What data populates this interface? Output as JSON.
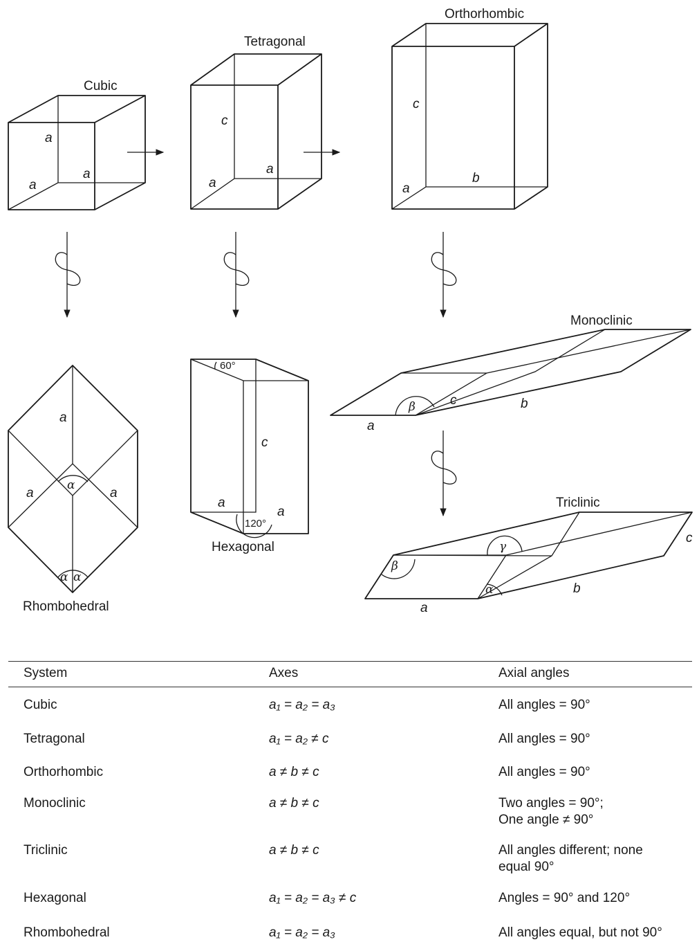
{
  "diagram": {
    "cubic": {
      "title": "Cubic",
      "edge_labels": [
        "a",
        "a",
        "a"
      ]
    },
    "tetragonal": {
      "title": "Tetragonal",
      "edge_labels": [
        "c",
        "a",
        "a"
      ]
    },
    "orthorhombic": {
      "title": "Orthorhombic",
      "edge_labels": [
        "c",
        "b",
        "a"
      ]
    },
    "monoclinic": {
      "title": "Monoclinic",
      "edge_labels": [
        "a",
        "b",
        "c"
      ],
      "angle_label": "β"
    },
    "triclinic": {
      "title": "Triclinic",
      "edge_labels": [
        "a",
        "b",
        "c"
      ],
      "angle_labels": [
        "α",
        "β",
        "γ"
      ]
    },
    "rhombohedral": {
      "title": "Rhombohedral",
      "edge_labels": [
        "a",
        "a",
        "a"
      ],
      "angle_label": "α"
    },
    "hexagonal": {
      "title": "Hexagonal",
      "edge_labels": [
        "c",
        "a",
        "a"
      ],
      "angle_labels": [
        "60°",
        "120°"
      ]
    }
  },
  "table": {
    "headers": {
      "system": "System",
      "axes": "Axes",
      "angles": "Axial angles"
    },
    "rows": [
      {
        "system": "Cubic",
        "axes": "a₁ = a₂ = a₃",
        "angles": "All angles = 90°"
      },
      {
        "system": "Tetragonal",
        "axes": "a₁ = a₂ ≠ c",
        "angles": "All angles = 90°"
      },
      {
        "system": "Orthorhombic",
        "axes": "a ≠ b ≠ c",
        "angles": "All angles = 90°"
      },
      {
        "system": "Monoclinic",
        "axes": "a ≠ b ≠ c",
        "angles": "Two angles = 90°;\nOne angle ≠ 90°"
      },
      {
        "system": "Triclinic",
        "axes": "a ≠ b ≠ c",
        "angles": "All angles different; none\nequal 90°"
      },
      {
        "system": "Hexagonal",
        "axes": "a₁ = a₂ = a₃ ≠ c",
        "angles": "Angles = 90° and 120°"
      },
      {
        "system": "Rhombohedral",
        "axes": "a₁ = a₂ = a₃",
        "angles": "All angles equal, but not 90°"
      }
    ]
  }
}
